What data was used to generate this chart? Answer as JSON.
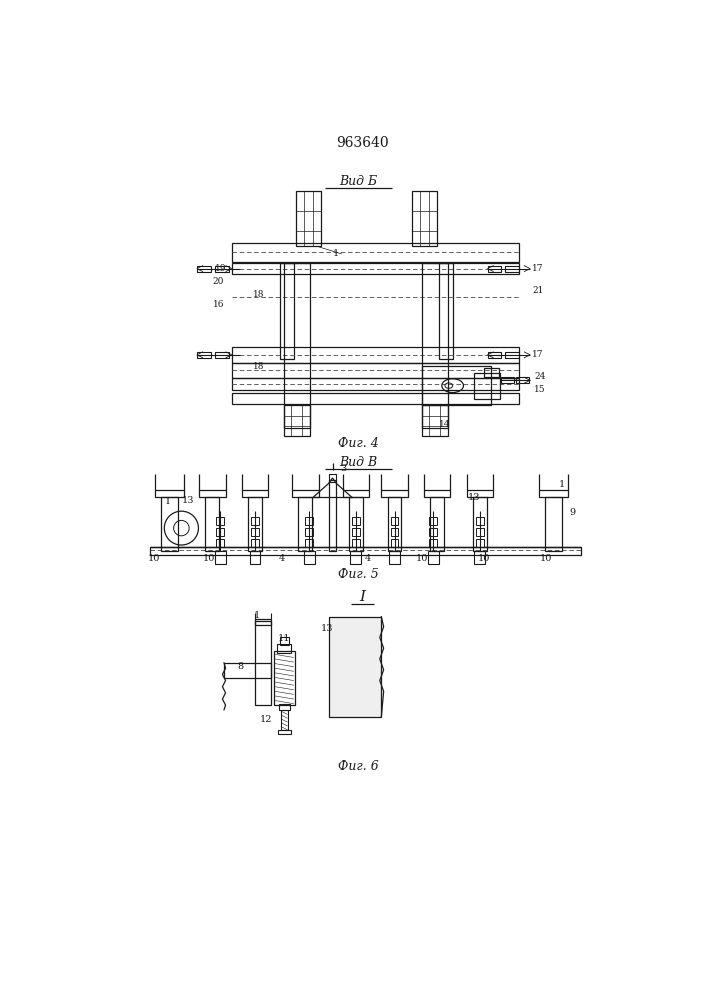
{
  "title": "963640",
  "fig4_title": "Вид Б",
  "fig5_title": "Вид В",
  "fig6_title": "I",
  "fig4_caption": "Фиг. 4",
  "fig5_caption": "Фиг. 5",
  "fig6_caption": "Фиг. 6",
  "bg": "#ffffff",
  "lc": "#1a1a1a"
}
